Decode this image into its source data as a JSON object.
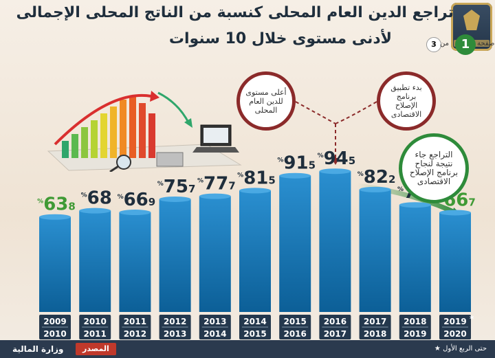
{
  "title": {
    "line1": "تراجع الدين العام المحلى كنسبة من الناتج المحلى الإجمالى",
    "line2": "لأدنى مستوى خلال 10 سنوات"
  },
  "page_indicator": {
    "word": "صفحة",
    "current": "1",
    "of": "من",
    "total": "3"
  },
  "callouts": {
    "highest": "أعلى مستوى للدين العام المحلى",
    "after_reform": "بدء تطبيق برنامج الإصلاح الاقتصادى",
    "decline": "التراجع جاء نتيجة لنجاح برنامج الإصلاح الاقتصادى"
  },
  "footer": {
    "source_label": "المصدر",
    "source_name": "وزارة المالية",
    "note": "حتى الربع الأول"
  },
  "colors": {
    "bar_top": "#2a8fd0",
    "bar_bottom": "#0c5f97",
    "label_normal": "#1f2e3c",
    "label_green": "#3f9a35",
    "tile": "#24384d"
  },
  "chart_data": {
    "type": "bar",
    "categories": [
      "2009\n2010",
      "2010\n2011",
      "2011\n2012",
      "2012\n2013",
      "2013\n2014",
      "2014\n2015",
      "2015\n2016",
      "2016\n2017",
      "2017\n2018",
      "2018\n2019",
      "2019\n2020"
    ],
    "years_top": [
      "2009",
      "2010",
      "2011",
      "2012",
      "2013",
      "2014",
      "2015",
      "2016",
      "2017",
      "2018",
      "2019"
    ],
    "years_bottom": [
      "2010",
      "2011",
      "2012",
      "2013",
      "2014",
      "2015",
      "2016",
      "2017",
      "2018",
      "2019",
      "2020"
    ],
    "values": [
      63.8,
      68,
      66.9,
      75.7,
      77.7,
      81.5,
      91.5,
      94.5,
      82.2,
      71.9,
      66.7
    ],
    "labels_int": [
      "63",
      "68",
      "66",
      "75",
      "77",
      "81",
      "91",
      "94",
      "82",
      "71",
      "66"
    ],
    "labels_dec": [
      "8",
      "",
      "9",
      "7",
      "7",
      "5",
      "5",
      "5",
      "2",
      "9",
      "7"
    ],
    "highlight": [
      true,
      false,
      false,
      false,
      false,
      false,
      false,
      false,
      false,
      false,
      true
    ],
    "unit": "%",
    "last_marker": "*",
    "ylim": [
      0,
      100
    ]
  }
}
